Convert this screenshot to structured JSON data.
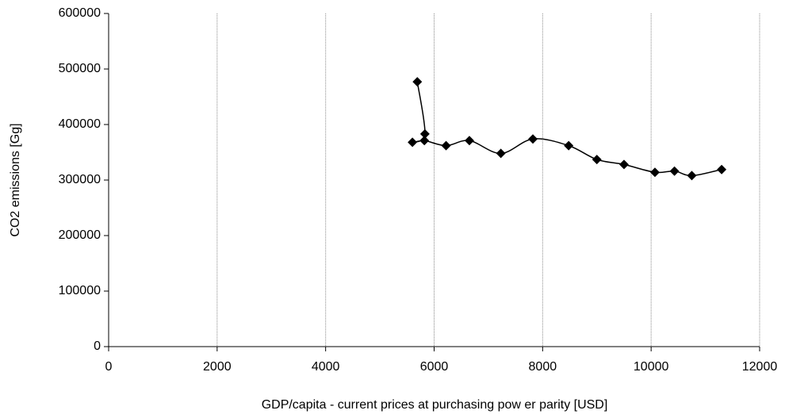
{
  "chart_data": {
    "type": "line",
    "x_label": "GDP/capita - current prices at purchasing pow er parity [USD]",
    "y_label": "CO2 emissions [Gg]",
    "x": [
      5690,
      5830,
      5600,
      5820,
      6220,
      6650,
      7230,
      7820,
      8480,
      9000,
      9500,
      10070,
      10430,
      10750,
      11300
    ],
    "values": [
      477000,
      383000,
      368000,
      371000,
      362000,
      371000,
      348000,
      374000,
      362000,
      337000,
      328000,
      314000,
      316000,
      308000,
      319000
    ],
    "color": "#000000",
    "marker": "diamond",
    "xlim": [
      0,
      12000
    ],
    "xticks": [
      0,
      2000,
      4000,
      6000,
      8000,
      10000,
      12000
    ],
    "ylim": [
      0,
      600000
    ],
    "yticks": [
      0,
      100000,
      200000,
      300000,
      400000,
      500000,
      600000
    ],
    "grid": "x"
  }
}
